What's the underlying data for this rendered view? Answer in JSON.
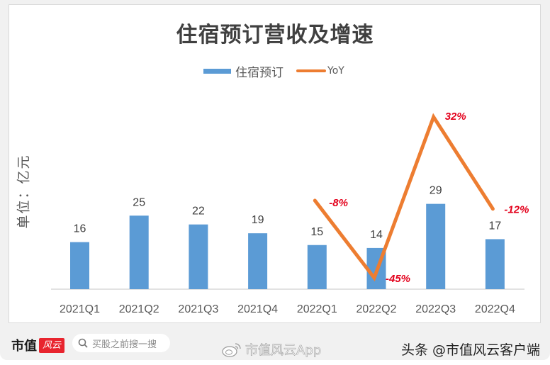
{
  "chart_data": {
    "type": "bar+line",
    "title": "住宿预订营收及增速",
    "ylabel": "单位：亿元",
    "xlabel": "",
    "categories": [
      "2021Q1",
      "2021Q2",
      "2021Q3",
      "2021Q4",
      "2022Q1",
      "2022Q2",
      "2022Q3",
      "2022Q4"
    ],
    "series": [
      {
        "name": "住宿预订",
        "type": "bar",
        "color": "#5b9bd5",
        "values": [
          16,
          25,
          22,
          19,
          15,
          14,
          29,
          17
        ]
      },
      {
        "name": "YoY",
        "type": "line",
        "color": "#ed7d31",
        "values": [
          null,
          null,
          null,
          null,
          -8,
          -45,
          32,
          -12
        ],
        "unit": "%"
      }
    ],
    "bar_labels": [
      "16",
      "25",
      "22",
      "19",
      "15",
      "14",
      "29",
      "17"
    ],
    "yoy_labels": [
      "",
      "",
      "",
      "",
      "-8%",
      "-45%",
      "32%",
      "-12%"
    ],
    "legend_position": "top",
    "grid": false
  },
  "legend": {
    "bar_label": "住宿预订",
    "line_label": "YoY"
  },
  "footer": {
    "brand_text": "市值",
    "brand_badge": "风云",
    "search_placeholder": "买股之前搜一搜",
    "weibo_handle": "市值风云App",
    "toutiao_handle": "头条 @市值风云客户端"
  }
}
